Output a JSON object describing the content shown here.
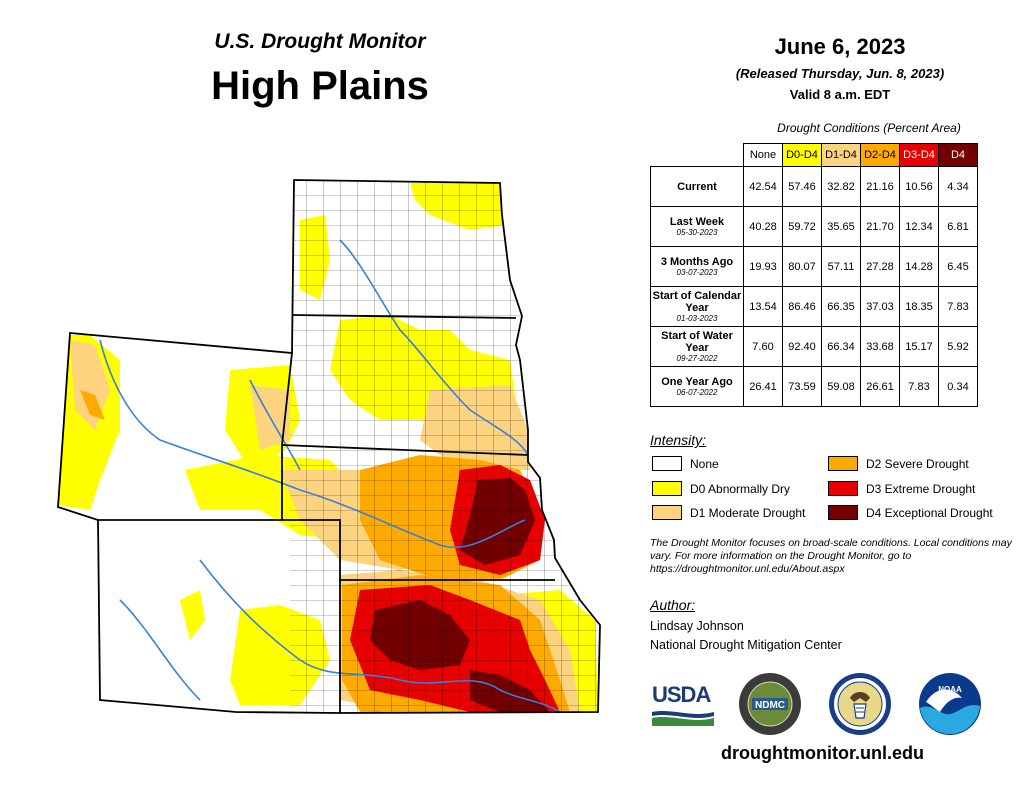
{
  "header": {
    "subtitle": "U.S. Drought Monitor",
    "title": "High Plains",
    "date": "June 6, 2023",
    "released": "(Released Thursday, Jun. 8, 2023)",
    "valid": "Valid 8 a.m. EDT"
  },
  "table": {
    "caption": "Drought Conditions (Percent Area)",
    "columns": [
      {
        "label": "None",
        "color": "#ffffff"
      },
      {
        "label": "D0-D4",
        "color": "#ffff00"
      },
      {
        "label": "D1-D4",
        "color": "#fcd37f"
      },
      {
        "label": "D2-D4",
        "color": "#ffaa00"
      },
      {
        "label": "D3-D4",
        "color": "#e60000"
      },
      {
        "label": "D4",
        "color": "#730000"
      }
    ],
    "rows": [
      {
        "label": "Current",
        "date": "",
        "values": [
          "42.54",
          "57.46",
          "32.82",
          "21.16",
          "10.56",
          "4.34"
        ]
      },
      {
        "label": "Last Week",
        "date": "05-30-2023",
        "values": [
          "40.28",
          "59.72",
          "35.65",
          "21.70",
          "12.34",
          "6.81"
        ]
      },
      {
        "label": "3 Months Ago",
        "date": "03-07-2023",
        "values": [
          "19.93",
          "80.07",
          "57.11",
          "27.28",
          "14.28",
          "6.45"
        ]
      },
      {
        "label": "Start of Calendar Year",
        "date": "01-03-2023",
        "values": [
          "13.54",
          "86.46",
          "66.35",
          "37.03",
          "18.35",
          "7.83"
        ]
      },
      {
        "label": "Start of Water Year",
        "date": "09-27-2022",
        "values": [
          "7.60",
          "92.40",
          "66.34",
          "33.68",
          "15.17",
          "5.92"
        ]
      },
      {
        "label": "One Year Ago",
        "date": "06-07-2022",
        "values": [
          "26.41",
          "73.59",
          "59.08",
          "26.61",
          "7.83",
          "0.34"
        ]
      }
    ]
  },
  "legend": {
    "heading": "Intensity:",
    "items": [
      {
        "label": "None",
        "color": "#ffffff"
      },
      {
        "label": "D0 Abnormally Dry",
        "color": "#ffff00"
      },
      {
        "label": "D1 Moderate Drought",
        "color": "#fcd37f"
      },
      {
        "label": "D2 Severe Drought",
        "color": "#ffaa00"
      },
      {
        "label": "D3 Extreme Drought",
        "color": "#e60000"
      },
      {
        "label": "D4 Exceptional Drought",
        "color": "#730000"
      }
    ]
  },
  "note": "The Drought Monitor focuses on broad-scale conditions. Local conditions may vary. For more information on the Drought Monitor, go to https://droughtmonitor.unl.edu/About.aspx",
  "author": {
    "heading": "Author:",
    "name": "Lindsay Johnson",
    "org": "National Drought Mitigation Center"
  },
  "logos": {
    "usda": "USDA",
    "ndmc": "NDMC",
    "noaa": "NOAA"
  },
  "website": "droughtmonitor.unl.edu",
  "map": {
    "states": [
      "Wyoming",
      "Colorado",
      "North Dakota",
      "South Dakota",
      "Nebraska",
      "Kansas"
    ],
    "colors": {
      "river": "#3a7fd9",
      "border": "#000000"
    }
  }
}
